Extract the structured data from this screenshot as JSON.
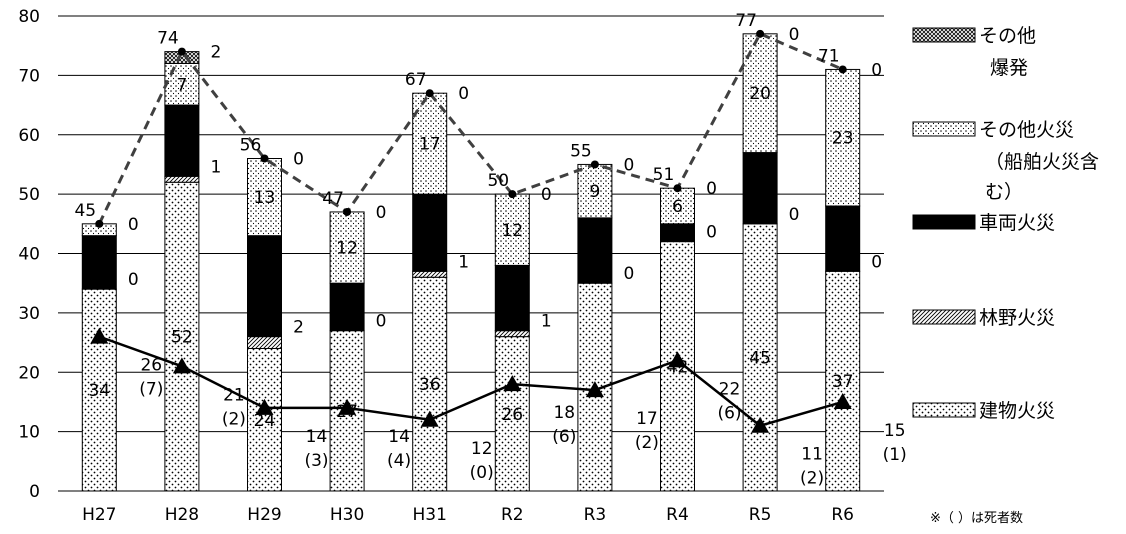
{
  "chart_data": {
    "type": "bar",
    "stacked": true,
    "categories": [
      "H27",
      "H28",
      "H29",
      "H30",
      "H31",
      "R2",
      "R3",
      "R4",
      "R5",
      "R6"
    ],
    "ylim": [
      0,
      80
    ],
    "yticks": [
      "0",
      "10",
      "20",
      "30",
      "40",
      "50",
      "60",
      "70",
      "80"
    ],
    "grid": "horizontal",
    "legend_position": "right",
    "colors": {
      "bar_edge": "#000000",
      "vehicle": "#000000",
      "line": "#000000"
    },
    "series": [
      {
        "name": "建物火災",
        "values": [
          34,
          52,
          24,
          27,
          36,
          26,
          35,
          42,
          45,
          37
        ],
        "pattern": "dots-sparse"
      },
      {
        "name": "林野火災",
        "values": [
          0,
          1,
          2,
          0,
          1,
          1,
          0,
          0,
          0,
          0
        ],
        "pattern": "diagonal-hatch"
      },
      {
        "name": "車両火災",
        "values": [
          9,
          12,
          17,
          8,
          13,
          11,
          11,
          3,
          12,
          11
        ],
        "pattern": "solid-black"
      },
      {
        "name": "その他火災",
        "name_line2": "（船舶火災含",
        "name_line3": "む）",
        "values": [
          2,
          7,
          13,
          12,
          17,
          12,
          9,
          6,
          20,
          23
        ],
        "pattern": "dots-fine"
      },
      {
        "name": "その他",
        "name_line2": "爆発",
        "values": [
          0,
          2,
          0,
          0,
          0,
          0,
          0,
          0,
          0,
          0
        ],
        "pattern": "cross-hatch"
      }
    ],
    "bar_labels": {
      "building": [
        "34",
        "52",
        "24",
        "27",
        "36",
        "26",
        "",
        "42",
        "45",
        "37"
      ],
      "forest": [
        "0",
        "1",
        "2",
        "0",
        "1",
        "1",
        "0",
        "0",
        "0",
        "0"
      ],
      "other_fire": [
        "",
        "7",
        "13",
        "12",
        "17",
        "12",
        "9",
        "6",
        "20",
        "23"
      ],
      "other": [
        "0",
        "2",
        "0",
        "0",
        "0",
        "0",
        "0",
        "0",
        "0",
        "0"
      ]
    },
    "totals": {
      "values": [
        45,
        74,
        56,
        47,
        67,
        50,
        55,
        51,
        77,
        71
      ],
      "labels": [
        "45",
        "74",
        "56",
        "47",
        "67",
        "50",
        "55",
        "51",
        "77",
        "71"
      ],
      "style": "dashed-line-circle-markers"
    },
    "casualties": {
      "values": [
        26,
        21,
        14,
        14,
        12,
        18,
        17,
        22,
        11,
        15
      ],
      "labels": [
        "26",
        "21",
        "14",
        "14",
        "12",
        "18",
        "17",
        "22",
        "11",
        "15"
      ],
      "deaths": [
        "(7)",
        "(2)",
        "(3)",
        "(4)",
        "(0)",
        "(6)",
        "(2)",
        "(6)",
        "(2)",
        "(1)"
      ],
      "style": "solid-line-triangle-markers"
    },
    "note": "※（ ）は死者数"
  }
}
